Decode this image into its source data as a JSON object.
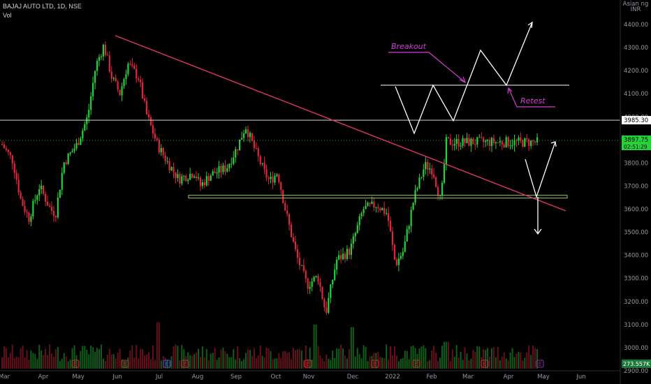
{
  "header": {
    "symbol": "BAJAJ AUTO LTD, 1D, NSE",
    "vol_label": "Vol"
  },
  "currency": {
    "line1": "Asian ng",
    "line2": "INR"
  },
  "colors": {
    "background": "#000000",
    "up": "#26d13a",
    "down": "#e0263c",
    "trendline": "#e0307a",
    "annotation": "#d13fd0",
    "white": "#ffffff",
    "support": "#9ccc65"
  },
  "chart_data": {
    "type": "candlestick",
    "y_axis": {
      "range": [
        2870,
        4500
      ],
      "ticks": [
        2900,
        3000,
        3100,
        3200,
        3300,
        3400,
        3500,
        3600,
        3700,
        3800,
        3900,
        4000,
        4100,
        4200,
        4300,
        4400
      ],
      "tick_labels": [
        "2900.00",
        "3000.00",
        "3100.00",
        "3200.00",
        "3300.00",
        "3400.00",
        "3500.00",
        "3600.00",
        "3700.00",
        "3800.00",
        "3900.00",
        "4000.00",
        "4100.00",
        "4200.00",
        "4300.00",
        "4400.00"
      ]
    },
    "x_axis": {
      "labels": [
        "Mar",
        "Apr",
        "May",
        "Jun",
        "Jul",
        "Aug",
        "Sep",
        "Oct",
        "Nov",
        "Dec",
        "2022",
        "Feb",
        "Mar",
        "Apr",
        "May",
        "Jun"
      ]
    },
    "price_labels": [
      {
        "value": 3985.3,
        "text": "3985.30",
        "style": "resistance"
      },
      {
        "value": 3897.75,
        "text": "3897.75",
        "sub": "02:51:29",
        "style": "last"
      }
    ],
    "volume_label": "273.557K",
    "series_anchors": [
      {
        "t": 0,
        "p": 3880
      },
      {
        "t": 0.02,
        "p": 3810
      },
      {
        "t": 0.035,
        "p": 3640
      },
      {
        "t": 0.05,
        "p": 3560
      },
      {
        "t": 0.07,
        "p": 3700
      },
      {
        "t": 0.09,
        "p": 3600
      },
      {
        "t": 0.1,
        "p": 3580
      },
      {
        "t": 0.115,
        "p": 3800
      },
      {
        "t": 0.14,
        "p": 3880
      },
      {
        "t": 0.16,
        "p": 4000
      },
      {
        "t": 0.175,
        "p": 4220
      },
      {
        "t": 0.19,
        "p": 4310
      },
      {
        "t": 0.205,
        "p": 4170
      },
      {
        "t": 0.22,
        "p": 4100
      },
      {
        "t": 0.235,
        "p": 4230
      },
      {
        "t": 0.255,
        "p": 4170
      },
      {
        "t": 0.27,
        "p": 4010
      },
      {
        "t": 0.29,
        "p": 3880
      },
      {
        "t": 0.31,
        "p": 3800
      },
      {
        "t": 0.33,
        "p": 3730
      },
      {
        "t": 0.36,
        "p": 3760
      },
      {
        "t": 0.37,
        "p": 3700
      },
      {
        "t": 0.39,
        "p": 3750
      },
      {
        "t": 0.42,
        "p": 3780
      },
      {
        "t": 0.44,
        "p": 3870
      },
      {
        "t": 0.455,
        "p": 3960
      },
      {
        "t": 0.47,
        "p": 3870
      },
      {
        "t": 0.49,
        "p": 3760
      },
      {
        "t": 0.5,
        "p": 3720
      },
      {
        "t": 0.515,
        "p": 3760
      },
      {
        "t": 0.53,
        "p": 3590
      },
      {
        "t": 0.55,
        "p": 3400
      },
      {
        "t": 0.57,
        "p": 3270
      },
      {
        "t": 0.59,
        "p": 3310
      },
      {
        "t": 0.605,
        "p": 3150
      },
      {
        "t": 0.625,
        "p": 3380
      },
      {
        "t": 0.65,
        "p": 3420
      },
      {
        "t": 0.675,
        "p": 3600
      },
      {
        "t": 0.7,
        "p": 3620
      },
      {
        "t": 0.72,
        "p": 3580
      },
      {
        "t": 0.735,
        "p": 3360
      },
      {
        "t": 0.75,
        "p": 3420
      },
      {
        "t": 0.77,
        "p": 3650
      },
      {
        "t": 0.79,
        "p": 3790
      },
      {
        "t": 0.805,
        "p": 3770
      },
      {
        "t": 0.82,
        "p": 3630
      },
      {
        "t": 0.83,
        "p": 3890
      }
    ],
    "volume_spikes": [
      {
        "t": 0.29,
        "v": 0.95
      },
      {
        "t": 0.585,
        "v": 0.9
      },
      {
        "t": 0.655,
        "v": 0.85
      },
      {
        "t": 0.83,
        "v": 0.55
      }
    ]
  },
  "annotations": {
    "breakout": "Breakout",
    "retest": "Retest"
  },
  "event_markers": [
    "E",
    "E",
    "E",
    "E",
    "E",
    "E",
    "E",
    "E",
    "E"
  ]
}
